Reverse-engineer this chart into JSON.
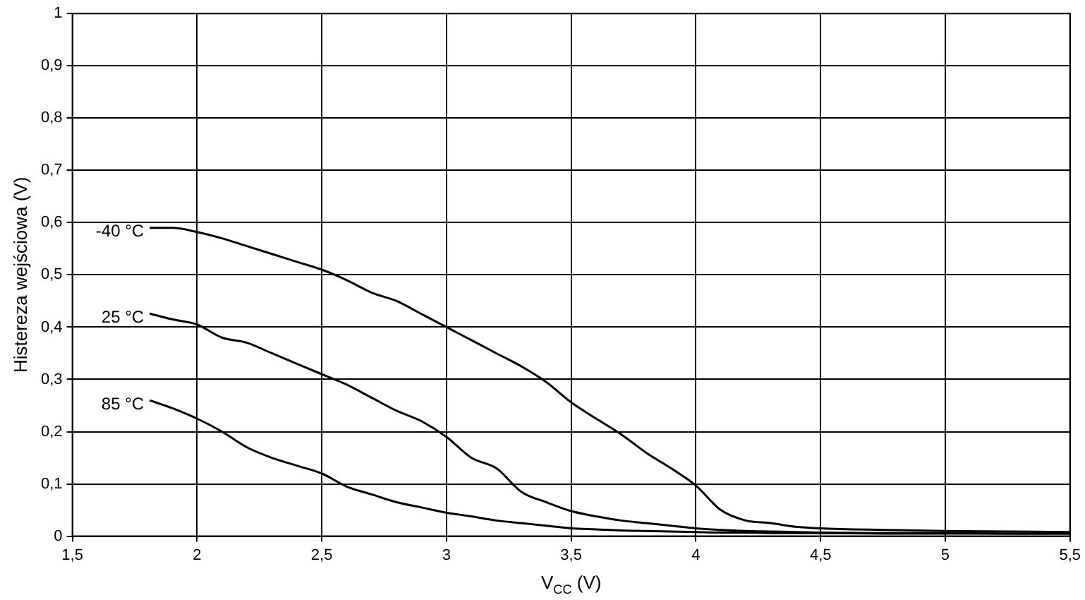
{
  "chart_data": {
    "type": "line",
    "xlabel": "V$_{CC}$ (V)",
    "ylabel": "Histereza wejściowa (V)",
    "xlim": [
      1.5,
      5.5
    ],
    "ylim": [
      0,
      1
    ],
    "xticks": [
      {
        "value": 1.5,
        "label": "1,5"
      },
      2,
      {
        "value": 2.5,
        "label": "2,5"
      },
      3,
      {
        "value": 3.5,
        "label": "3,5"
      },
      4,
      {
        "value": 4.5,
        "label": "4,5"
      },
      5,
      {
        "value": 5.5,
        "label": "5,5"
      }
    ],
    "yticks": [
      0,
      {
        "value": 0.1,
        "label": "0,1"
      },
      {
        "value": 0.2,
        "label": "0,2"
      },
      {
        "value": 0.3,
        "label": "0,3"
      },
      {
        "value": 0.4,
        "label": "0,4"
      },
      {
        "value": 0.5,
        "label": "0,5"
      },
      {
        "value": 0.6,
        "label": "0,6"
      },
      {
        "value": 0.7,
        "label": "0,7"
      },
      {
        "value": 0.8,
        "label": "0,8"
      },
      {
        "value": 0.9,
        "label": "0,9"
      },
      1
    ],
    "grid": true,
    "legend": false,
    "marker": "none",
    "line_style": "solid",
    "x": [
      1.81,
      1.9,
      2.0,
      2.1,
      2.2,
      2.3,
      2.4,
      2.5,
      2.6,
      2.7,
      2.8,
      2.9,
      3.0,
      3.1,
      3.2,
      3.3,
      3.4,
      3.5,
      3.6,
      3.7,
      3.8,
      3.9,
      4.0,
      4.1,
      4.2,
      4.3,
      4.4,
      4.5,
      4.75,
      5.0,
      5.25,
      5.5
    ],
    "series": [
      {
        "name": "-40 °C",
        "color": "#000000",
        "values": [
          0.59,
          0.59,
          0.582,
          0.57,
          0.555,
          0.54,
          0.525,
          0.51,
          0.49,
          0.466,
          0.45,
          0.425,
          0.4,
          0.375,
          0.35,
          0.325,
          0.295,
          0.256,
          0.225,
          0.195,
          0.16,
          0.13,
          0.097,
          0.05,
          0.03,
          0.025,
          0.018,
          0.015,
          0.012,
          0.01,
          0.009,
          0.008
        ]
      },
      {
        "name": "25 °C",
        "color": "#000000",
        "values": [
          0.426,
          0.415,
          0.405,
          0.38,
          0.37,
          0.35,
          0.33,
          0.31,
          0.29,
          0.265,
          0.24,
          0.22,
          0.19,
          0.15,
          0.13,
          0.085,
          0.065,
          0.048,
          0.038,
          0.03,
          0.025,
          0.02,
          0.015,
          0.012,
          0.01,
          0.009,
          0.008,
          0.007,
          0.006,
          0.006,
          0.005,
          0.005
        ]
      },
      {
        "name": "85 °C",
        "color": "#000000",
        "values": [
          0.26,
          0.245,
          0.225,
          0.2,
          0.17,
          0.15,
          0.135,
          0.12,
          0.095,
          0.08,
          0.065,
          0.055,
          0.045,
          0.038,
          0.03,
          0.025,
          0.02,
          0.015,
          0.013,
          0.011,
          0.01,
          0.009,
          0.008,
          0.007,
          0.007,
          0.006,
          0.006,
          0.006,
          0.005,
          0.005,
          0.005,
          0.005
        ]
      }
    ]
  }
}
